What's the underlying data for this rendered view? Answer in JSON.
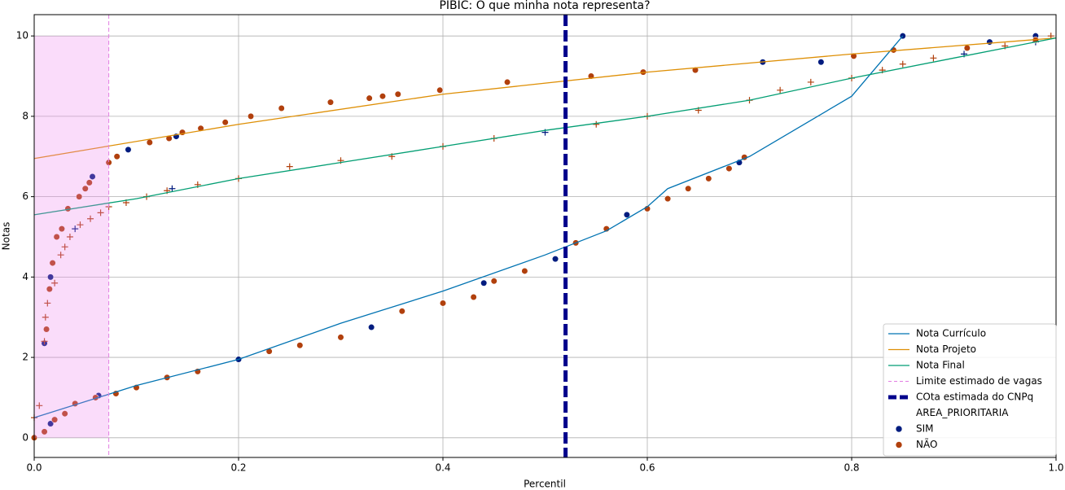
{
  "chart_data": {
    "type": "line",
    "title": "PIBIC: O que minha nota representa?",
    "xlabel": "Percentil",
    "ylabel": "Notas",
    "xlim": [
      0,
      1
    ],
    "ylim": [
      -0.49,
      10.53
    ],
    "xticks": [
      {
        "value": 0,
        "label": "0.0"
      },
      0.2,
      0.4,
      0.6,
      0.8,
      {
        "value": 1,
        "label": "1.0"
      }
    ],
    "yticks": [
      0,
      2,
      4,
      6,
      8,
      10
    ],
    "grid": true,
    "legend": "lower right",
    "series": [
      {
        "name": "Nota Currículo",
        "color": "#0173b2",
        "x": [
          0,
          0.1,
          0.2,
          0.3,
          0.4,
          0.5,
          0.56,
          0.6,
          0.62,
          0.7,
          0.8,
          0.85
        ],
        "values": [
          0.5,
          1.3,
          1.95,
          2.85,
          3.65,
          4.55,
          5.15,
          5.75,
          6.2,
          7.0,
          8.5,
          10
        ]
      },
      {
        "name": "Nota Projeto",
        "color": "#de8f05",
        "x": [
          0,
          0.2,
          0.4,
          0.6,
          0.8,
          1
        ],
        "values": [
          6.95,
          7.8,
          8.55,
          9.1,
          9.55,
          9.95
        ]
      },
      {
        "name": "Nota Final",
        "color": "#029e73",
        "x": [
          0,
          0.1,
          0.2,
          0.3,
          0.4,
          0.5,
          0.6,
          0.7,
          0.8,
          0.9,
          1
        ],
        "values": [
          5.55,
          5.95,
          6.45,
          6.85,
          7.25,
          7.65,
          8.0,
          8.4,
          8.95,
          9.45,
          9.95
        ]
      }
    ],
    "vlines": [
      {
        "name": "Limite estimado de vagas",
        "x": 0.073,
        "color": "#e27de2",
        "style": "dashed"
      },
      {
        "name": "COta estimada do CNPq",
        "x": 0.52,
        "color": "#00008b",
        "style": "bold-dashed"
      }
    ],
    "span": {
      "x": [
        0,
        0.073
      ],
      "y": [
        0,
        10
      ],
      "color": "#ee82ee"
    },
    "hue": {
      "title": "AREA_PRIORITARIA",
      "groups": [
        {
          "name": "SIM",
          "color": "#001c7f",
          "curriculo": {
            "x": [
              0.016,
              0.063,
              0.2,
              0.33,
              0.44,
              0.51,
              0.58,
              0.69
            ],
            "y": [
              0.35,
              1.05,
              1.95,
              2.75,
              3.85,
              4.45,
              5.55,
              6.85
            ]
          },
          "projeto": {
            "x": [
              0.01,
              0.016,
              0.057,
              0.092,
              0.139,
              0.713,
              0.77,
              0.85,
              0.935,
              0.98
            ],
            "y": [
              2.35,
              4.0,
              6.5,
              7.17,
              7.5,
              9.35,
              9.35,
              10,
              9.85,
              10
            ]
          },
          "final": {
            "x": [
              0.04,
              0.135,
              0.5,
              0.91,
              0.98
            ],
            "y": [
              5.2,
              6.2,
              7.6,
              9.55,
              9.85
            ]
          }
        },
        {
          "name": "NÃO",
          "color": "#b1400d",
          "curriculo": {
            "x": [
              0,
              0.01,
              0.02,
              0.03,
              0.04,
              0.06,
              0.08,
              0.1,
              0.13,
              0.16,
              0.23,
              0.26,
              0.3,
              0.36,
              0.4,
              0.43,
              0.45,
              0.48,
              0.53,
              0.56,
              0.6,
              0.62,
              0.64,
              0.66,
              0.68,
              0.695
            ],
            "y": [
              0,
              0.15,
              0.45,
              0.6,
              0.85,
              1.0,
              1.1,
              1.25,
              1.5,
              1.65,
              2.15,
              2.3,
              2.5,
              3.15,
              3.35,
              3.5,
              3.9,
              4.15,
              4.85,
              5.2,
              5.7,
              5.95,
              6.2,
              6.45,
              6.7,
              6.98
            ]
          },
          "projeto": {
            "x": [
              0.012,
              0.015,
              0.018,
              0.022,
              0.027,
              0.033,
              0.044,
              0.05,
              0.054,
              0.073,
              0.081,
              0.113,
              0.132,
              0.145,
              0.163,
              0.187,
              0.212,
              0.242,
              0.29,
              0.328,
              0.341,
              0.356,
              0.397,
              0.463,
              0.545,
              0.596,
              0.647,
              0.802,
              0.841,
              0.913,
              0.98
            ],
            "y": [
              2.7,
              3.7,
              4.35,
              5.0,
              5.2,
              5.7,
              6.0,
              6.2,
              6.35,
              6.85,
              7.0,
              7.35,
              7.45,
              7.6,
              7.7,
              7.85,
              8.0,
              8.2,
              8.35,
              8.45,
              8.5,
              8.55,
              8.65,
              8.85,
              9.0,
              9.1,
              9.15,
              9.5,
              9.65,
              9.7,
              9.9
            ]
          },
          "final": {
            "x": [
              0,
              0.005,
              0.01,
              0.011,
              0.013,
              0.02,
              0.026,
              0.03,
              0.035,
              0.045,
              0.055,
              0.065,
              0.073,
              0.09,
              0.11,
              0.13,
              0.16,
              0.2,
              0.25,
              0.3,
              0.35,
              0.4,
              0.45,
              0.55,
              0.6,
              0.65,
              0.7,
              0.73,
              0.76,
              0.8,
              0.83,
              0.85,
              0.88,
              0.95,
              0.995
            ],
            "y": [
              0.5,
              0.8,
              2.4,
              3.0,
              3.35,
              3.85,
              4.55,
              4.75,
              5.0,
              5.3,
              5.45,
              5.6,
              5.75,
              5.85,
              6.0,
              6.15,
              6.3,
              6.45,
              6.75,
              6.9,
              7.0,
              7.25,
              7.45,
              7.8,
              8.0,
              8.15,
              8.4,
              8.65,
              8.85,
              8.95,
              9.15,
              9.3,
              9.45,
              9.75,
              10
            ]
          }
        }
      ]
    }
  }
}
